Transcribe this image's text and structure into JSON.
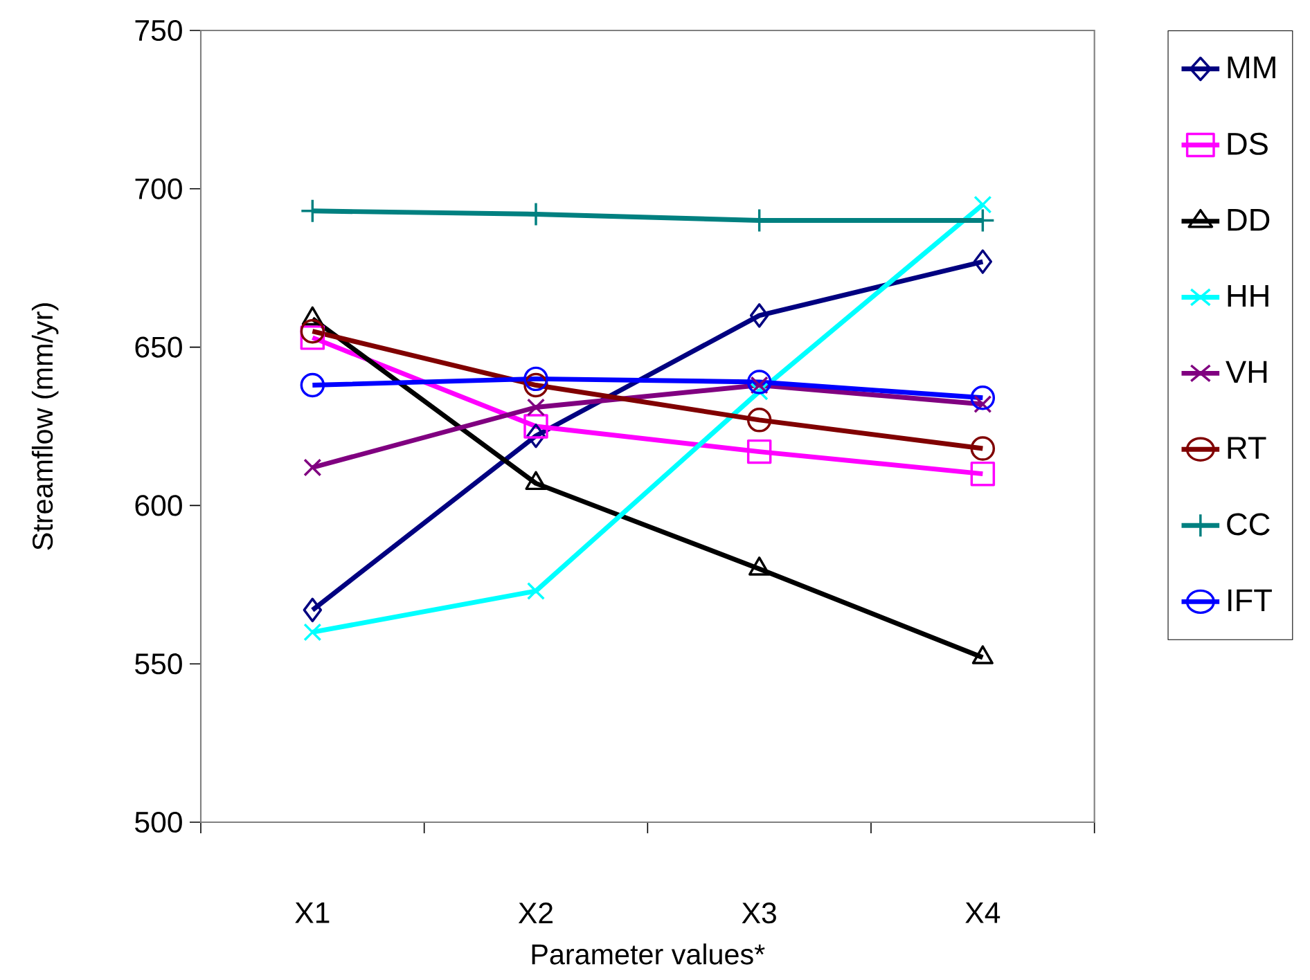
{
  "chart_data": {
    "type": "line",
    "xlabel": "Parameter values*",
    "ylabel": "Streamflow (mm/yr)",
    "categories": [
      "X1",
      "X2",
      "X3",
      "X4"
    ],
    "ylim": [
      500,
      750
    ],
    "yticks": [
      500,
      550,
      600,
      650,
      700,
      750
    ],
    "grid": false,
    "legend": "right",
    "line_style": "solid",
    "series": [
      {
        "name": "MM",
        "color": "#000080",
        "marker": "diamond",
        "values": [
          567,
          622,
          660,
          677
        ]
      },
      {
        "name": "DS",
        "color": "#ff00ff",
        "marker": "square",
        "values": [
          653,
          625,
          617,
          610
        ]
      },
      {
        "name": "DD",
        "color": "#000000",
        "marker": "triangle",
        "values": [
          659,
          607,
          580,
          552
        ]
      },
      {
        "name": "HH",
        "color": "#00ffff",
        "marker": "cross",
        "values": [
          560,
          573,
          636,
          695
        ]
      },
      {
        "name": "VH",
        "color": "#800080",
        "marker": "cross",
        "values": [
          612,
          631,
          638,
          632
        ]
      },
      {
        "name": "RT",
        "color": "#800000",
        "marker": "circle",
        "values": [
          655,
          638,
          627,
          618
        ]
      },
      {
        "name": "CC",
        "color": "#008080",
        "marker": "plus",
        "values": [
          693,
          692,
          690,
          690
        ]
      },
      {
        "name": "IFT",
        "color": "#0000ff",
        "marker": "circle",
        "values": [
          638,
          640,
          639,
          634
        ]
      }
    ]
  }
}
